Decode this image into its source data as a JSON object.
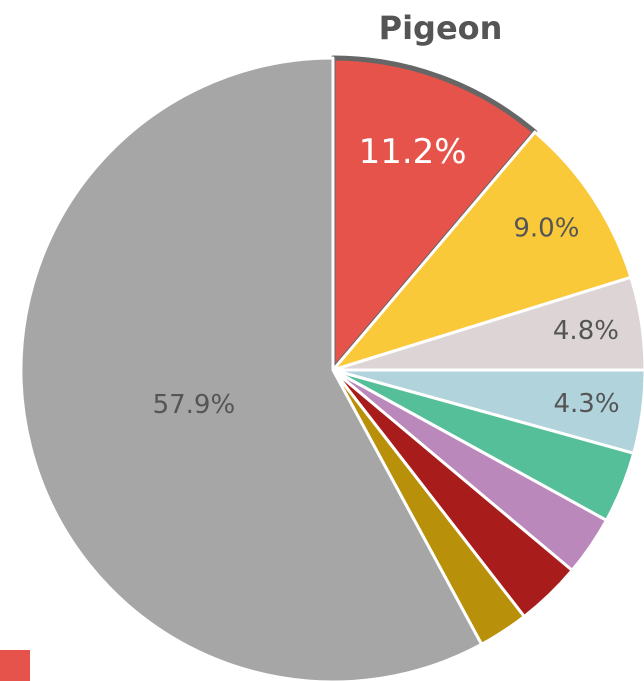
{
  "chart_data": {
    "type": "pie",
    "categories": [
      "Pigeon",
      null,
      null,
      null,
      null,
      null,
      null,
      null,
      null
    ],
    "values": [
      11.2,
      9.0,
      4.8,
      4.3,
      3.7,
      3.1,
      3.4,
      2.6,
      57.9
    ],
    "value_labels": [
      "11.2%",
      "9.0%",
      "4.8%",
      "4.3%",
      null,
      null,
      null,
      null,
      "57.9%"
    ],
    "colors": [
      "#e5534b",
      "#f9c93a",
      "#ddd5d5",
      "#b0d3dc",
      "#55bf9a",
      "#bb88bb",
      "#a81c1c",
      "#b8900a",
      "#a6a6a6"
    ],
    "selected": 0
  }
}
